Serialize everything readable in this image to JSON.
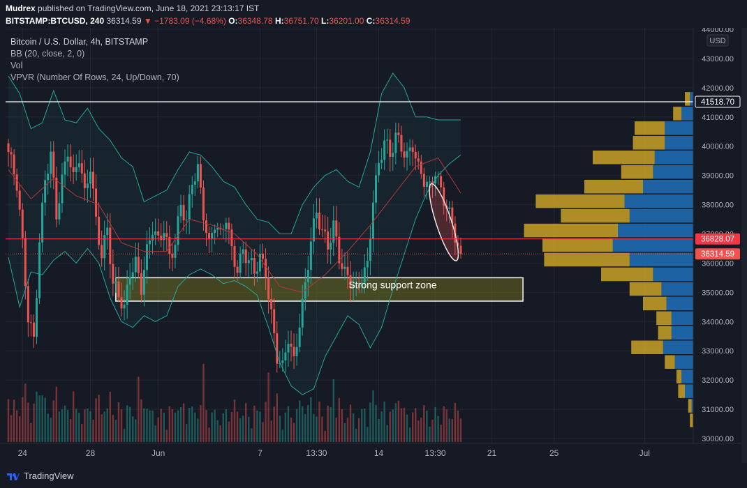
{
  "header": {
    "author": "Mudrex",
    "published_text": "published on TradingView.com, June 18, 2021 23:13:17 IST",
    "symbol": "BITSTAMP:BTCUSD, 240",
    "last": "36314.59",
    "change": "▼ −1783.09 (−4.68%)",
    "o_label": "O:",
    "o_value": "36348.78",
    "h_label": "H:",
    "h_value": "36751.70",
    "l_label": "L:",
    "l_value": "36201.00",
    "c_label": "C:",
    "c_value": "36314.59"
  },
  "legend": {
    "title": "Bitcoin / U.S. Dollar, 4h, BITSTAMP",
    "bb": "BB (20, close, 2, 0)",
    "vol": "Vol",
    "vpvr": "VPVR (Number Of Rows, 24, Up/Down, 70)"
  },
  "footer": {
    "brand": "TradingView"
  },
  "colors": {
    "up": "#26a69a",
    "down": "#ef5350",
    "bb_band": "#26a69a",
    "bb_basis": "#b2393b",
    "vp_up": "#1e6ab0",
    "vp_down": "#c9a227",
    "support_zone": "#6b6a1e",
    "level_white": "#ffffff",
    "level_red": "#f23645",
    "background": "#161a25"
  },
  "chart_data": {
    "type": "candlestick",
    "title": "Bitcoin / U.S. Dollar, 4h, BITSTAMP",
    "currency": "USD",
    "ylim": [
      30000,
      44000
    ],
    "y_ticks": [
      "30000.00",
      "31000.00",
      "32000.00",
      "33000.00",
      "34000.00",
      "35000.00",
      "36000.00",
      "37000.00",
      "38000.00",
      "39000.00",
      "40000.00",
      "41000.00",
      "42000.00",
      "43000.00",
      "44000.00"
    ],
    "x_ticks": [
      "24",
      "28",
      "Jun",
      "7",
      "13:30",
      "14",
      "13:30",
      "21",
      "25",
      "Jul"
    ],
    "x_tick_index": [
      5,
      29,
      53,
      89,
      109,
      131,
      151,
      171,
      193,
      225
    ],
    "key_path": [
      [
        0,
        39800
      ],
      [
        3,
        38600
      ],
      [
        5,
        36600
      ],
      [
        7,
        34200
      ],
      [
        9,
        33500
      ],
      [
        11,
        36800
      ],
      [
        13,
        38800
      ],
      [
        15,
        39600
      ],
      [
        17,
        37600
      ],
      [
        19,
        38900
      ],
      [
        21,
        40000
      ],
      [
        23,
        38900
      ],
      [
        25,
        39600
      ],
      [
        27,
        38200
      ],
      [
        29,
        39300
      ],
      [
        31,
        37500
      ],
      [
        33,
        36400
      ],
      [
        35,
        37200
      ],
      [
        37,
        35200
      ],
      [
        39,
        34800
      ],
      [
        41,
        34400
      ],
      [
        43,
        35800
      ],
      [
        45,
        36100
      ],
      [
        47,
        35200
      ],
      [
        49,
        36300
      ],
      [
        51,
        37100
      ],
      [
        53,
        36700
      ],
      [
        55,
        37300
      ],
      [
        57,
        36300
      ],
      [
        59,
        36700
      ],
      [
        61,
        37900
      ],
      [
        63,
        37300
      ],
      [
        65,
        38800
      ],
      [
        67,
        39300
      ],
      [
        69,
        37800
      ],
      [
        71,
        36600
      ],
      [
        73,
        37300
      ],
      [
        75,
        36800
      ],
      [
        77,
        37600
      ],
      [
        79,
        36500
      ],
      [
        81,
        35900
      ],
      [
        83,
        36400
      ],
      [
        85,
        36000
      ],
      [
        87,
        35600
      ],
      [
        89,
        36200
      ],
      [
        91,
        35800
      ],
      [
        93,
        34300
      ],
      [
        95,
        32800
      ],
      [
        97,
        32300
      ],
      [
        99,
        33400
      ],
      [
        101,
        32600
      ],
      [
        103,
        34100
      ],
      [
        105,
        35300
      ],
      [
        107,
        36800
      ],
      [
        109,
        37600
      ],
      [
        111,
        37000
      ],
      [
        113,
        36600
      ],
      [
        115,
        37400
      ],
      [
        117,
        36300
      ],
      [
        119,
        35600
      ],
      [
        121,
        35300
      ],
      [
        123,
        34900
      ],
      [
        125,
        35600
      ],
      [
        127,
        36000
      ],
      [
        129,
        38300
      ],
      [
        131,
        39300
      ],
      [
        133,
        40100
      ],
      [
        135,
        39600
      ],
      [
        137,
        40400
      ],
      [
        139,
        40100
      ],
      [
        141,
        39700
      ],
      [
        143,
        40000
      ],
      [
        145,
        39100
      ],
      [
        147,
        38800
      ],
      [
        149,
        38600
      ],
      [
        151,
        39300
      ],
      [
        153,
        38500
      ],
      [
        155,
        37900
      ],
      [
        157,
        37200
      ],
      [
        159,
        36500
      ],
      [
        160,
        36315
      ]
    ],
    "bb_upper": [
      [
        0,
        42400
      ],
      [
        4,
        41800
      ],
      [
        8,
        40600
      ],
      [
        12,
        40800
      ],
      [
        16,
        41900
      ],
      [
        20,
        40900
      ],
      [
        24,
        40800
      ],
      [
        28,
        41300
      ],
      [
        32,
        40600
      ],
      [
        36,
        40200
      ],
      [
        40,
        39600
      ],
      [
        44,
        39300
      ],
      [
        48,
        38100
      ],
      [
        52,
        38300
      ],
      [
        56,
        38500
      ],
      [
        60,
        39200
      ],
      [
        64,
        39800
      ],
      [
        68,
        39700
      ],
      [
        72,
        39300
      ],
      [
        76,
        38800
      ],
      [
        80,
        38600
      ],
      [
        84,
        38000
      ],
      [
        88,
        37500
      ],
      [
        92,
        37400
      ],
      [
        96,
        37000
      ],
      [
        100,
        37000
      ],
      [
        104,
        38000
      ],
      [
        108,
        38600
      ],
      [
        112,
        39000
      ],
      [
        116,
        39200
      ],
      [
        120,
        38800
      ],
      [
        124,
        38600
      ],
      [
        128,
        39800
      ],
      [
        132,
        41800
      ],
      [
        136,
        42500
      ],
      [
        140,
        42000
      ],
      [
        144,
        41000
      ],
      [
        148,
        41000
      ],
      [
        152,
        40900
      ],
      [
        156,
        40900
      ],
      [
        160,
        40900
      ]
    ],
    "bb_lower": [
      [
        0,
        36200
      ],
      [
        4,
        34500
      ],
      [
        8,
        35700
      ],
      [
        12,
        35600
      ],
      [
        16,
        36100
      ],
      [
        20,
        36400
      ],
      [
        24,
        36000
      ],
      [
        28,
        36500
      ],
      [
        32,
        36000
      ],
      [
        36,
        34800
      ],
      [
        40,
        34000
      ],
      [
        44,
        33800
      ],
      [
        48,
        34200
      ],
      [
        52,
        34000
      ],
      [
        56,
        34200
      ],
      [
        60,
        35200
      ],
      [
        64,
        35600
      ],
      [
        68,
        35800
      ],
      [
        72,
        35600
      ],
      [
        76,
        35300
      ],
      [
        80,
        35400
      ],
      [
        84,
        35200
      ],
      [
        88,
        34900
      ],
      [
        92,
        33800
      ],
      [
        96,
        32600
      ],
      [
        100,
        31800
      ],
      [
        104,
        31500
      ],
      [
        108,
        31700
      ],
      [
        112,
        32800
      ],
      [
        116,
        33500
      ],
      [
        120,
        34200
      ],
      [
        124,
        33900
      ],
      [
        128,
        33100
      ],
      [
        132,
        33800
      ],
      [
        136,
        35100
      ],
      [
        140,
        36300
      ],
      [
        144,
        37500
      ],
      [
        148,
        38400
      ],
      [
        152,
        39000
      ],
      [
        156,
        39400
      ],
      [
        160,
        39700
      ]
    ],
    "bb_basis": [
      [
        0,
        39200
      ],
      [
        8,
        38200
      ],
      [
        16,
        38900
      ],
      [
        24,
        38300
      ],
      [
        32,
        38000
      ],
      [
        40,
        36700
      ],
      [
        48,
        36400
      ],
      [
        56,
        36400
      ],
      [
        64,
        37500
      ],
      [
        72,
        37300
      ],
      [
        80,
        37000
      ],
      [
        88,
        36300
      ],
      [
        96,
        35200
      ],
      [
        104,
        35000
      ],
      [
        112,
        35600
      ],
      [
        120,
        36400
      ],
      [
        128,
        37300
      ],
      [
        136,
        38300
      ],
      [
        144,
        39300
      ],
      [
        152,
        39600
      ],
      [
        160,
        38400
      ]
    ],
    "levels": [
      {
        "price": 41518.7,
        "label": "41518.70",
        "color": "#ffffff",
        "style": "solid"
      },
      {
        "price": 36828.07,
        "label": "36828.07",
        "color": "#f23645",
        "style": "solid"
      },
      {
        "price": 36314.59,
        "label": "36314.59",
        "color": "#ef5350",
        "style": "dotted"
      }
    ],
    "support_zone": {
      "label": "Strong support zone",
      "x_index": [
        38,
        182
      ],
      "y_range": [
        34700,
        35500
      ]
    },
    "volume_profile": [
      {
        "price": 30600,
        "up": 0.0,
        "down": 0.02
      },
      {
        "price": 31100,
        "up": 0.01,
        "down": 0.02
      },
      {
        "price": 31600,
        "up": 0.05,
        "down": 0.04
      },
      {
        "price": 32100,
        "up": 0.07,
        "down": 0.03
      },
      {
        "price": 32600,
        "up": 0.11,
        "down": 0.06
      },
      {
        "price": 33100,
        "up": 0.18,
        "down": 0.19
      },
      {
        "price": 33600,
        "up": 0.13,
        "down": 0.08
      },
      {
        "price": 34100,
        "up": 0.13,
        "down": 0.09
      },
      {
        "price": 34600,
        "up": 0.16,
        "down": 0.14
      },
      {
        "price": 35100,
        "up": 0.19,
        "down": 0.19
      },
      {
        "price": 35600,
        "up": 0.24,
        "down": 0.31
      },
      {
        "price": 36100,
        "up": 0.38,
        "down": 0.51
      },
      {
        "price": 36600,
        "up": 0.48,
        "down": 0.42
      },
      {
        "price": 37100,
        "up": 0.45,
        "down": 0.56
      },
      {
        "price": 37600,
        "up": 0.38,
        "down": 0.41
      },
      {
        "price": 38100,
        "up": 0.41,
        "down": 0.53
      },
      {
        "price": 38600,
        "up": 0.3,
        "down": 0.35
      },
      {
        "price": 39100,
        "up": 0.24,
        "down": 0.19
      },
      {
        "price": 39600,
        "up": 0.23,
        "down": 0.37
      },
      {
        "price": 40100,
        "up": 0.17,
        "down": 0.19
      },
      {
        "price": 40600,
        "up": 0.17,
        "down": 0.18
      },
      {
        "price": 41100,
        "up": 0.07,
        "down": 0.05
      },
      {
        "price": 41600,
        "up": 0.02,
        "down": 0.03
      }
    ],
    "currency_label": "USD"
  }
}
